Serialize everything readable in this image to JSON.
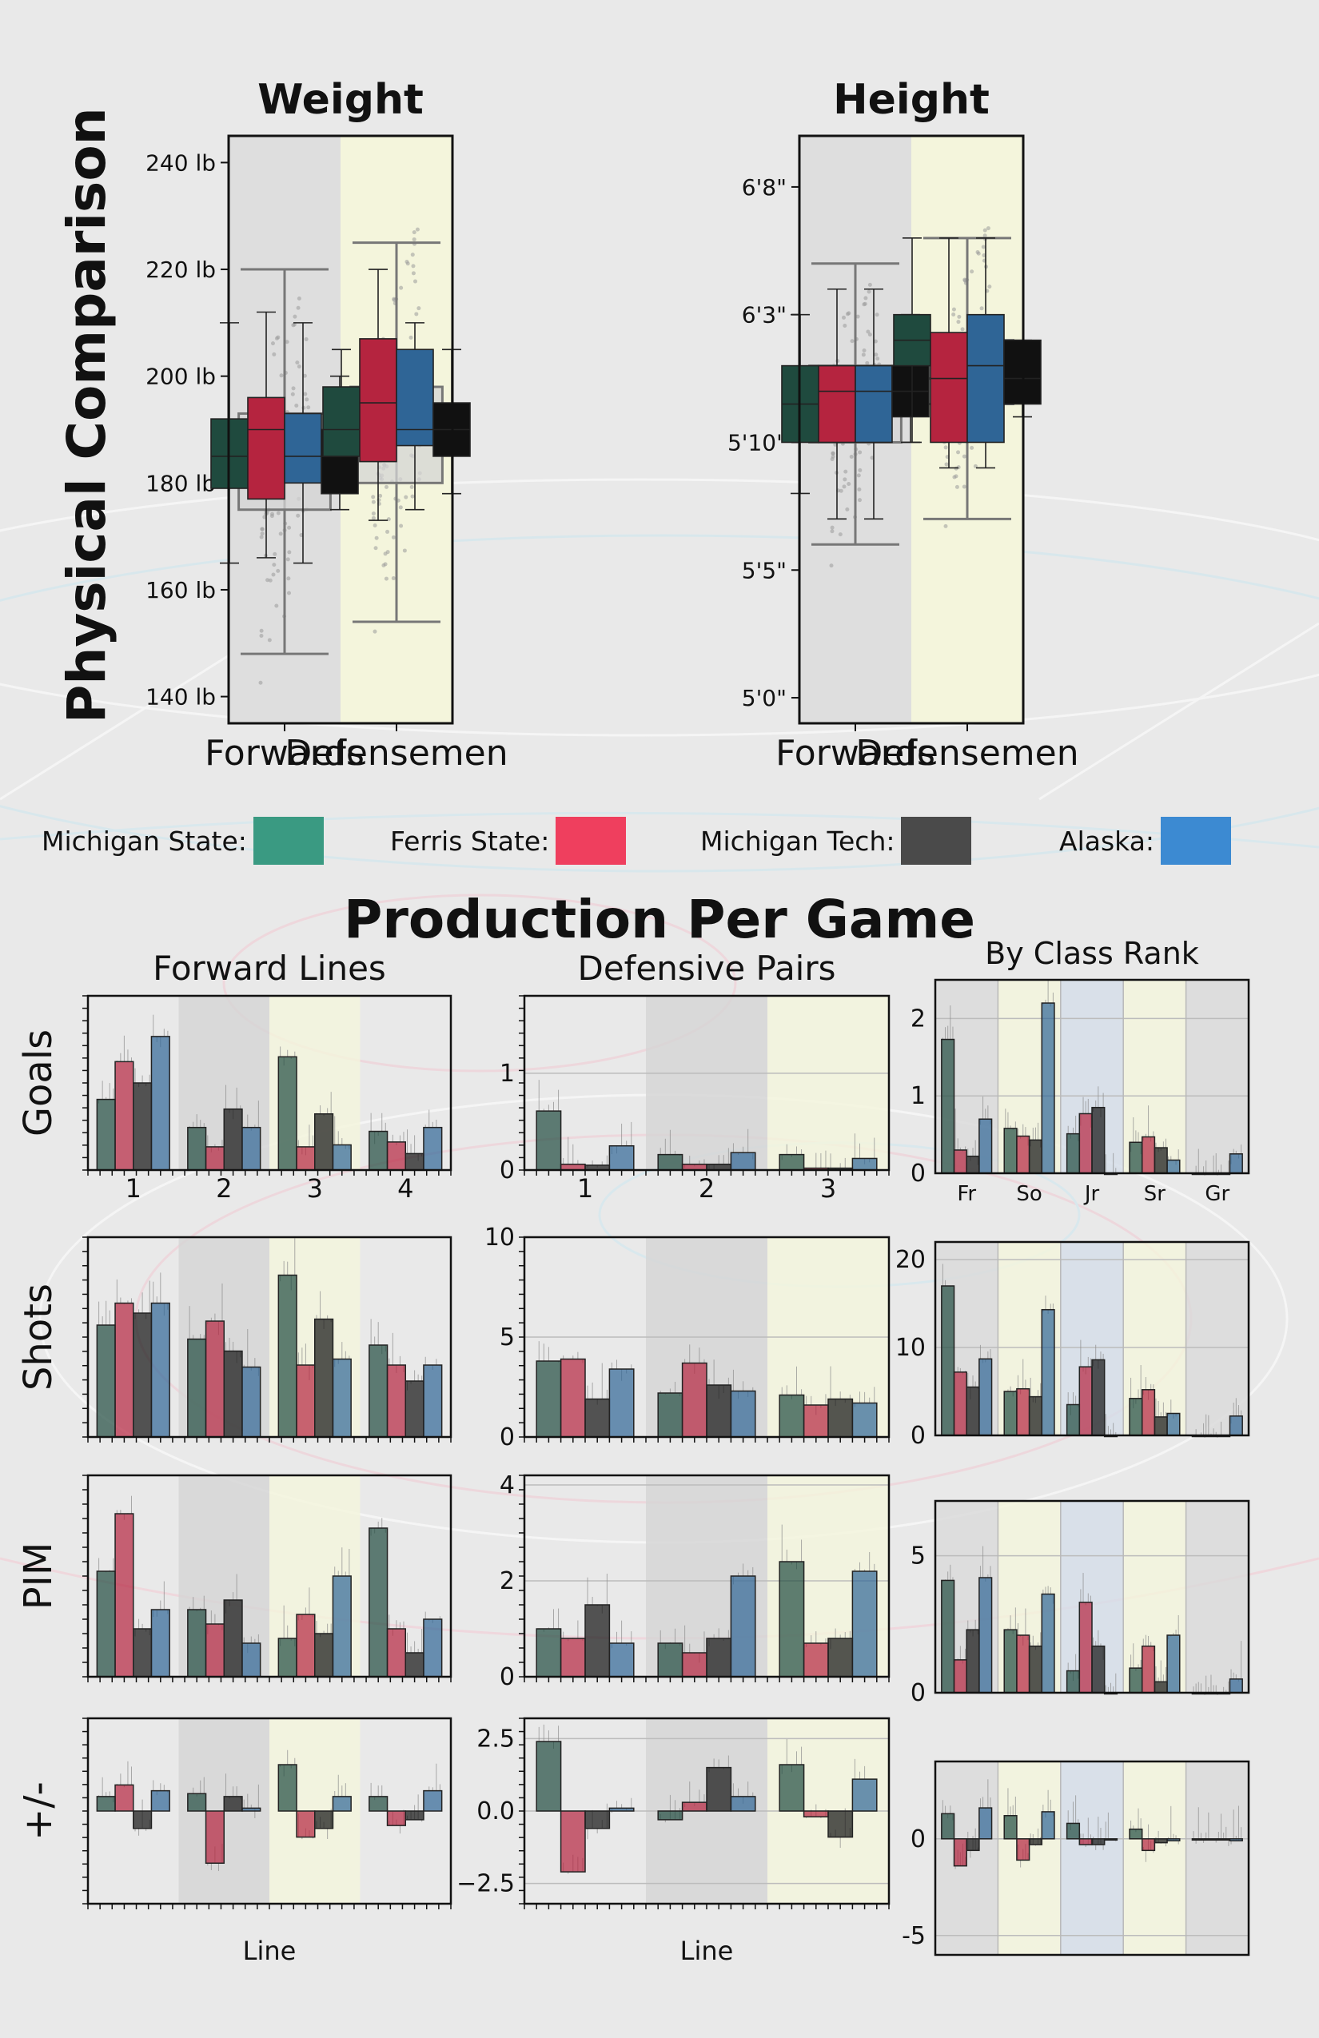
{
  "page": {
    "side_title": "Physical Comparison",
    "production_title": "Production Per Game"
  },
  "colors": {
    "michigan_state": "#1f4a3e",
    "ferris_state": "#b5243f",
    "michigan_tech": "#111111",
    "alaska": "#2f6596",
    "band_gray": "#d6d6d6",
    "band_yellow": "#f4f5dc"
  },
  "legend": [
    {
      "label": "Michigan State:",
      "color": "#3a9a82"
    },
    {
      "label": "Ferris State:",
      "color": "#ef3f5e"
    },
    {
      "label": "Michigan Tech:",
      "color": "#4a4a4a"
    },
    {
      "label": "Alaska:",
      "color": "#3c8ad2"
    }
  ],
  "chart_data": [
    {
      "id": "weight",
      "type": "box",
      "title": "Weight",
      "categories": [
        "Forwards",
        "Defensemen"
      ],
      "ylim": [
        135,
        245
      ],
      "yticks": [
        140,
        160,
        180,
        200,
        220,
        240
      ],
      "ytick_labels": [
        "140 lb",
        "160 lb",
        "180 lb",
        "200 lb",
        "220 lb",
        "240 lb"
      ],
      "overall": [
        {
          "q1": 175,
          "med": 185,
          "q3": 193,
          "wlo": 148,
          "whi": 220
        },
        {
          "q1": 180,
          "med": 190,
          "q3": 198,
          "wlo": 154,
          "whi": 225
        }
      ],
      "series": [
        {
          "name": "Michigan State",
          "boxes": [
            {
              "q1": 179,
              "med": 185,
              "q3": 192,
              "wlo": 165,
              "whi": 210
            },
            {
              "q1": 185,
              "med": 190,
              "q3": 198,
              "wlo": 185,
              "whi": 205
            }
          ]
        },
        {
          "name": "Ferris State",
          "boxes": [
            {
              "q1": 177,
              "med": 190,
              "q3": 196,
              "wlo": 166,
              "whi": 212
            },
            {
              "q1": 184,
              "med": 195,
              "q3": 207,
              "wlo": 173,
              "whi": 220
            }
          ]
        },
        {
          "name": "Alaska",
          "boxes": [
            {
              "q1": 180,
              "med": 185,
              "q3": 193,
              "wlo": 165,
              "whi": 210
            },
            {
              "q1": 187,
              "med": 190,
              "q3": 205,
              "wlo": 175,
              "whi": 210
            }
          ]
        },
        {
          "name": "Michigan Tech",
          "boxes": [
            {
              "q1": 178,
              "med": 185,
              "q3": 190,
              "wlo": 175,
              "whi": 200
            },
            {
              "q1": 185,
              "med": 190,
              "q3": 195,
              "wlo": 178,
              "whi": 205
            }
          ]
        }
      ]
    },
    {
      "id": "height",
      "type": "box",
      "title": "Height",
      "categories": [
        "Forwards",
        "Defensemen"
      ],
      "ylim": [
        59,
        82
      ],
      "yticks": [
        60,
        65,
        70,
        75,
        80
      ],
      "ytick_labels": [
        "5'0\"",
        "5'5\"",
        "5'10\"",
        "6'3\"",
        "6'8\""
      ],
      "overall": [
        {
          "q1": 70,
          "med": 72,
          "q3": 73,
          "wlo": 66,
          "whi": 77
        },
        {
          "q1": 71.5,
          "med": 72.5,
          "q3": 74,
          "wlo": 67,
          "whi": 78
        }
      ],
      "series": [
        {
          "name": "Michigan State",
          "boxes": [
            {
              "q1": 70,
              "med": 71.5,
              "q3": 73,
              "wlo": 68,
              "whi": 75
            },
            {
              "q1": 73,
              "med": 74,
              "q3": 75,
              "wlo": 70,
              "whi": 78
            }
          ]
        },
        {
          "name": "Ferris State",
          "boxes": [
            {
              "q1": 70,
              "med": 72,
              "q3": 73,
              "wlo": 67,
              "whi": 76
            },
            {
              "q1": 70,
              "med": 72.5,
              "q3": 74.3,
              "wlo": 69,
              "whi": 78
            }
          ]
        },
        {
          "name": "Alaska",
          "boxes": [
            {
              "q1": 70,
              "med": 72,
              "q3": 73,
              "wlo": 67,
              "whi": 76
            },
            {
              "q1": 70,
              "med": 73,
              "q3": 75,
              "wlo": 69,
              "whi": 78
            }
          ]
        },
        {
          "name": "Michigan Tech",
          "boxes": [
            {
              "q1": 71,
              "med": 72,
              "q3": 73,
              "wlo": 70,
              "whi": 75
            },
            {
              "q1": 71.5,
              "med": 72.5,
              "q3": 74,
              "wlo": 71,
              "whi": 74
            }
          ]
        }
      ]
    },
    {
      "id": "fw-goals",
      "type": "bar",
      "title": "Forward Lines",
      "ylabel": "Goals",
      "categories": [
        "1",
        "2",
        "3",
        "4"
      ],
      "show_xticks": true,
      "ylim": [
        0,
        1.8
      ],
      "series": [
        {
          "name": "Michigan State",
          "values": [
            0.73,
            0.44,
            1.17,
            0.4
          ]
        },
        {
          "name": "Ferris State",
          "values": [
            1.12,
            0.24,
            0.24,
            0.29
          ]
        },
        {
          "name": "Michigan Tech",
          "values": [
            0.9,
            0.63,
            0.58,
            0.17
          ]
        },
        {
          "name": "Alaska",
          "values": [
            1.38,
            0.44,
            0.26,
            0.44
          ]
        }
      ]
    },
    {
      "id": "dp-goals",
      "type": "bar",
      "title": "Defensive Pairs",
      "categories": [
        "1",
        "2",
        "3"
      ],
      "show_xticks": true,
      "ylim": [
        0,
        1.8
      ],
      "yticks": [
        0,
        1
      ],
      "ytick_labels": [
        "0",
        "1"
      ],
      "series": [
        {
          "name": "Michigan State",
          "values": [
            0.61,
            0.16,
            0.16
          ]
        },
        {
          "name": "Ferris State",
          "values": [
            0.06,
            0.06,
            0.02
          ]
        },
        {
          "name": "Michigan Tech",
          "values": [
            0.05,
            0.06,
            0.02
          ]
        },
        {
          "name": "Alaska",
          "values": [
            0.25,
            0.18,
            0.12
          ]
        }
      ]
    },
    {
      "id": "cr-goals",
      "type": "bar",
      "title": "By Class Rank",
      "categories": [
        "Fr",
        "So",
        "Jr",
        "Sr",
        "Gr"
      ],
      "show_xticks": true,
      "ylim": [
        0,
        2.5
      ],
      "yticks": [
        0,
        1,
        2
      ],
      "ytick_labels": [
        "0",
        "1",
        "2"
      ],
      "series": [
        {
          "name": "Michigan State",
          "values": [
            1.73,
            0.58,
            0.51,
            0.4,
            0
          ]
        },
        {
          "name": "Ferris State",
          "values": [
            0.3,
            0.48,
            0.77,
            0.47,
            0
          ]
        },
        {
          "name": "Michigan Tech",
          "values": [
            0.22,
            0.43,
            0.85,
            0.33,
            0
          ]
        },
        {
          "name": "Alaska",
          "values": [
            0.7,
            2.2,
            0,
            0.17,
            0.25
          ]
        }
      ]
    },
    {
      "id": "fw-shots",
      "type": "bar",
      "ylabel": "Shots",
      "categories": [
        "1",
        "2",
        "3",
        "4"
      ],
      "ylim": [
        0,
        10
      ],
      "series": [
        {
          "name": "Michigan State",
          "values": [
            5.6,
            4.9,
            8.1,
            4.6
          ]
        },
        {
          "name": "Ferris State",
          "values": [
            6.7,
            5.8,
            3.6,
            3.6
          ]
        },
        {
          "name": "Michigan Tech",
          "values": [
            6.2,
            4.3,
            5.9,
            2.8
          ]
        },
        {
          "name": "Alaska",
          "values": [
            6.7,
            3.5,
            3.9,
            3.6
          ]
        }
      ]
    },
    {
      "id": "dp-shots",
      "type": "bar",
      "categories": [
        "1",
        "2",
        "3"
      ],
      "ylim": [
        0,
        10
      ],
      "yticks": [
        0,
        5,
        10
      ],
      "ytick_labels": [
        "0",
        "5",
        "10"
      ],
      "series": [
        {
          "name": "Michigan State",
          "values": [
            3.8,
            2.2,
            2.1
          ]
        },
        {
          "name": "Ferris State",
          "values": [
            3.9,
            3.7,
            1.6
          ]
        },
        {
          "name": "Michigan Tech",
          "values": [
            1.9,
            2.6,
            1.9
          ]
        },
        {
          "name": "Alaska",
          "values": [
            3.4,
            2.3,
            1.7
          ]
        }
      ]
    },
    {
      "id": "cr-shots",
      "type": "bar",
      "categories": [
        "Fr",
        "So",
        "Jr",
        "Sr",
        "Gr"
      ],
      "ylim": [
        0,
        22
      ],
      "yticks": [
        0,
        10,
        20
      ],
      "ytick_labels": [
        "0",
        "10",
        "20"
      ],
      "series": [
        {
          "name": "Michigan State",
          "values": [
            17,
            5,
            3.5,
            4.2,
            0
          ]
        },
        {
          "name": "Ferris State",
          "values": [
            7.2,
            5.3,
            7.8,
            5.2,
            0
          ]
        },
        {
          "name": "Michigan Tech",
          "values": [
            5.5,
            4.4,
            8.6,
            2.1,
            0
          ]
        },
        {
          "name": "Alaska",
          "values": [
            8.7,
            14.3,
            0,
            2.5,
            2.2
          ]
        }
      ]
    },
    {
      "id": "fw-pim",
      "type": "bar",
      "ylabel": "PIM",
      "categories": [
        "1",
        "2",
        "3",
        "4"
      ],
      "ylim": [
        0,
        4.2
      ],
      "series": [
        {
          "name": "Michigan State",
          "values": [
            2.2,
            1.4,
            0.8,
            3.1
          ]
        },
        {
          "name": "Ferris State",
          "values": [
            3.4,
            1.1,
            1.3,
            1.0
          ]
        },
        {
          "name": "Michigan Tech",
          "values": [
            1.0,
            1.6,
            0.9,
            0.5
          ]
        },
        {
          "name": "Alaska",
          "values": [
            1.4,
            0.7,
            2.1,
            1.2
          ]
        }
      ]
    },
    {
      "id": "dp-pim",
      "type": "bar",
      "categories": [
        "1",
        "2",
        "3"
      ],
      "ylim": [
        0,
        4.2
      ],
      "yticks": [
        0,
        2,
        4
      ],
      "ytick_labels": [
        "0",
        "2",
        "4"
      ],
      "series": [
        {
          "name": "Michigan State",
          "values": [
            1.0,
            0.7,
            2.4
          ]
        },
        {
          "name": "Ferris State",
          "values": [
            0.8,
            0.5,
            0.7
          ]
        },
        {
          "name": "Michigan Tech",
          "values": [
            1.5,
            0.8,
            0.8
          ]
        },
        {
          "name": "Alaska",
          "values": [
            0.7,
            2.1,
            2.2
          ]
        }
      ]
    },
    {
      "id": "cr-pim",
      "type": "bar",
      "categories": [
        "Fr",
        "So",
        "Jr",
        "Sr",
        "Gr"
      ],
      "ylim": [
        0,
        7
      ],
      "yticks": [
        0,
        5
      ],
      "ytick_labels": [
        "0",
        "5"
      ],
      "series": [
        {
          "name": "Michigan State",
          "values": [
            4.1,
            2.3,
            0.8,
            0.9,
            0
          ]
        },
        {
          "name": "Ferris State",
          "values": [
            1.2,
            2.1,
            3.3,
            1.7,
            0
          ]
        },
        {
          "name": "Michigan Tech",
          "values": [
            2.3,
            1.7,
            1.7,
            0.4,
            0
          ]
        },
        {
          "name": "Alaska",
          "values": [
            4.2,
            3.6,
            0,
            2.1,
            0.5
          ]
        }
      ]
    },
    {
      "id": "fw-pm",
      "type": "bar",
      "ylabel": "+/-",
      "xlabel": "Line",
      "categories": [
        "1",
        "2",
        "3",
        "4"
      ],
      "ylim": [
        -3.2,
        3.2
      ],
      "series": [
        {
          "name": "Michigan State",
          "values": [
            0.5,
            0.6,
            1.6,
            0.5
          ]
        },
        {
          "name": "Ferris State",
          "values": [
            0.9,
            -1.8,
            -0.9,
            -0.5
          ]
        },
        {
          "name": "Michigan Tech",
          "values": [
            -0.6,
            0.5,
            -0.6,
            -0.3
          ]
        },
        {
          "name": "Alaska",
          "values": [
            0.7,
            0.1,
            0.5,
            0.7
          ]
        }
      ]
    },
    {
      "id": "dp-pm",
      "type": "bar",
      "xlabel": "Line",
      "categories": [
        "1",
        "2",
        "3"
      ],
      "ylim": [
        -3.2,
        3.2
      ],
      "yticks": [
        -2.5,
        0,
        2.5
      ],
      "ytick_labels": [
        "−2.5",
        "0.0",
        "2.5"
      ],
      "series": [
        {
          "name": "Michigan State",
          "values": [
            2.4,
            -0.3,
            1.6
          ]
        },
        {
          "name": "Ferris State",
          "values": [
            -2.1,
            0.3,
            -0.2
          ]
        },
        {
          "name": "Michigan Tech",
          "values": [
            -0.6,
            1.5,
            -0.9
          ]
        },
        {
          "name": "Alaska",
          "values": [
            0.1,
            0.5,
            1.1
          ]
        }
      ]
    },
    {
      "id": "cr-pm",
      "type": "bar",
      "categories": [
        "Fr",
        "So",
        "Jr",
        "Sr",
        "Gr"
      ],
      "ylim": [
        -6,
        4
      ],
      "yticks": [
        -5,
        0
      ],
      "ytick_labels": [
        "-5",
        "0"
      ],
      "series": [
        {
          "name": "Michigan State",
          "values": [
            1.3,
            1.2,
            0.8,
            0.5,
            0
          ]
        },
        {
          "name": "Ferris State",
          "values": [
            -1.4,
            -1.1,
            -0.3,
            -0.6,
            0
          ]
        },
        {
          "name": "Michigan Tech",
          "values": [
            -0.6,
            -0.3,
            -0.3,
            -0.2,
            0
          ]
        },
        {
          "name": "Alaska",
          "values": [
            1.6,
            1.4,
            0,
            -0.1,
            -0.1
          ]
        }
      ]
    }
  ]
}
